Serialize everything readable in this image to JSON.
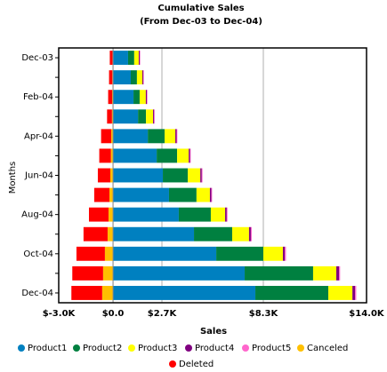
{
  "chart_data": {
    "type": "stacked-bar-horizontal",
    "title": "Cumulative Sales",
    "subtitle": "(From Dec-03 to Dec-04)",
    "x_label": "Sales",
    "y_label": "Months",
    "categories": [
      "Dec-03",
      null,
      "Feb-04",
      null,
      "Apr-04",
      null,
      "Jun-04",
      null,
      "Aug-04",
      null,
      "Oct-04",
      null,
      "Dec-04"
    ],
    "series": [
      {
        "name": "Product1",
        "color": "#0080c0",
        "values": [
          830,
          980,
          1130,
          1380,
          1920,
          2410,
          2750,
          3090,
          3630,
          4470,
          5700,
          7270,
          7860
        ]
      },
      {
        "name": "Product2",
        "color": "#008040",
        "values": [
          340,
          340,
          340,
          440,
          930,
          1130,
          1380,
          1520,
          1770,
          2110,
          2600,
          3780,
          4030
        ]
      },
      {
        "name": "Product3",
        "color": "#ffff00",
        "values": [
          250,
          300,
          340,
          390,
          590,
          640,
          690,
          740,
          790,
          930,
          1080,
          1280,
          1330
        ]
      },
      {
        "name": "Product4",
        "color": "#800080",
        "values": [
          50,
          50,
          60,
          60,
          70,
          70,
          80,
          80,
          90,
          100,
          110,
          150,
          150
        ]
      },
      {
        "name": "Product5",
        "color": "#ff66cc",
        "values": [
          30,
          30,
          30,
          30,
          40,
          40,
          40,
          40,
          40,
          50,
          60,
          60,
          60
        ]
      },
      {
        "name": "Canceled",
        "color": "#ffc000",
        "values": [
          -30,
          -40,
          -50,
          -60,
          -100,
          -120,
          -150,
          -200,
          -250,
          -300,
          -450,
          -550,
          -600
        ]
      },
      {
        "name": "Deleted",
        "color": "#ff0000",
        "values": [
          -150,
          -180,
          -220,
          -270,
          -560,
          -640,
          -690,
          -840,
          -1080,
          -1330,
          -1570,
          -1700,
          -1700
        ]
      }
    ],
    "xlim": [
      -3000,
      14000
    ],
    "xticks": [
      {
        "value": -3000,
        "label": "$-3.0K"
      },
      {
        "value": 0,
        "label": "$0.0"
      },
      {
        "value": 2700,
        "label": "$2.7K"
      },
      {
        "value": 8300,
        "label": "$8.3K"
      },
      {
        "value": 14000,
        "label": "$14.0K"
      }
    ],
    "grid": true
  }
}
